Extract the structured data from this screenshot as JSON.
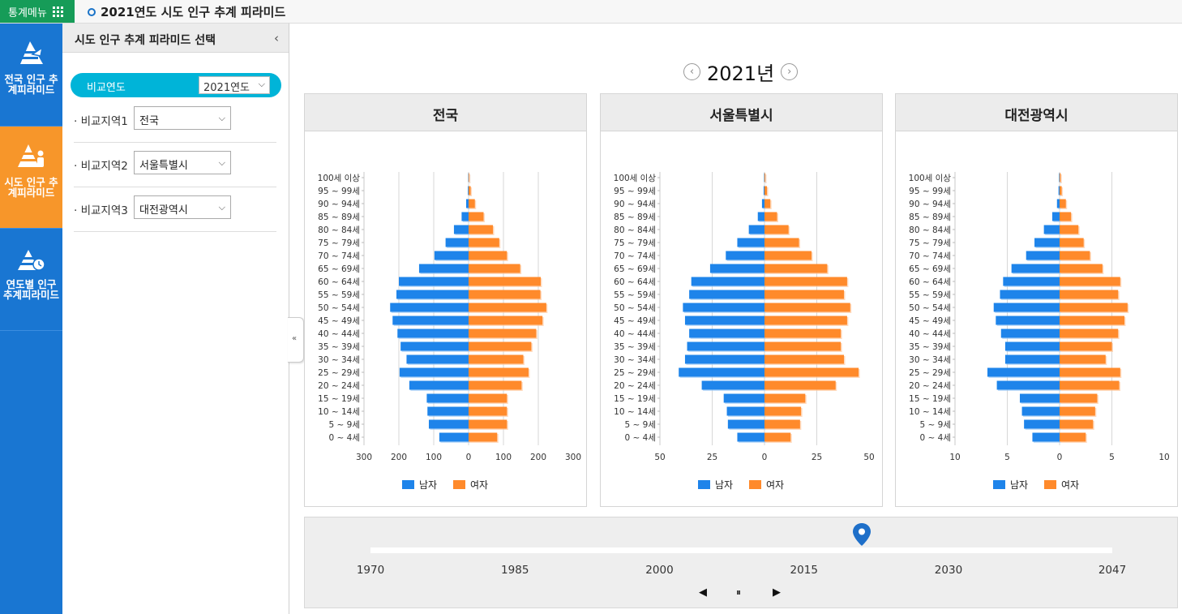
{
  "topbar": {
    "menu_label": "통계메뉴",
    "menu_icon": "grid-icon",
    "title": "2021연도 시도 인구 추계 피라미드"
  },
  "nav": [
    {
      "label": "전국 인구 추계피라미드",
      "icon": "pyramid-national-icon",
      "active": false
    },
    {
      "label": "시도 인구 추계피라미드",
      "icon": "pyramid-region-icon",
      "active": true
    },
    {
      "label": "연도별 인구 추계피라미드",
      "icon": "pyramid-clock-icon",
      "active": false
    }
  ],
  "panel": {
    "title": "시도 인구 추계 피라미드 선택",
    "compare_year_label": "비교연도",
    "compare_year_value": "2021연도",
    "regions": [
      {
        "label": "· 비교지역1",
        "value": "전국"
      },
      {
        "label": "· 비교지역2",
        "value": "서울특별시"
      },
      {
        "label": "· 비교지역3",
        "value": "대전광역시"
      }
    ]
  },
  "year_nav": {
    "year": "2021년",
    "prev_icon": "chevron-left-icon",
    "next_icon": "chevron-right-icon"
  },
  "legend": {
    "male": "남자",
    "female": "여자",
    "male_color": "#1e84ea",
    "female_color": "#ff8a2b"
  },
  "chart_data": [
    {
      "type": "bar",
      "title": "전국",
      "categories": [
        "100세 이상",
        "95 ~ 99세",
        "90 ~ 94세",
        "85 ~ 89세",
        "80 ~ 84세",
        "75 ~ 79세",
        "70 ~ 74세",
        "65 ~ 69세",
        "60 ~ 64세",
        "55 ~ 59세",
        "50 ~ 54세",
        "45 ~ 49세",
        "40 ~ 44세",
        "35 ~ 39세",
        "30 ~ 34세",
        "25 ~ 29세",
        "20 ~ 24세",
        "15 ~ 19세",
        "10 ~ 14세",
        "5 ~ 9세",
        "0 ~ 4세"
      ],
      "series": [
        {
          "name": "남자",
          "values": [
            1,
            2,
            7,
            20,
            42,
            66,
            98,
            142,
            200,
            207,
            225,
            218,
            204,
            195,
            178,
            198,
            170,
            120,
            118,
            114,
            84
          ]
        },
        {
          "name": "여자",
          "values": [
            2,
            6,
            18,
            43,
            70,
            88,
            110,
            148,
            207,
            206,
            223,
            212,
            194,
            180,
            157,
            172,
            152,
            110,
            110,
            110,
            82
          ]
        }
      ],
      "xlim": [
        -300,
        300
      ],
      "xticks": [
        "300",
        "200",
        "100",
        "0",
        "100",
        "200",
        "300"
      ]
    },
    {
      "type": "bar",
      "title": "서울특별시",
      "categories": [
        "100세 이상",
        "95 ~ 99세",
        "90 ~ 94세",
        "85 ~ 89세",
        "80 ~ 84세",
        "75 ~ 79세",
        "70 ~ 74세",
        "65 ~ 69세",
        "60 ~ 64세",
        "55 ~ 59세",
        "50 ~ 54세",
        "45 ~ 49세",
        "40 ~ 44세",
        "35 ~ 39세",
        "30 ~ 34세",
        "25 ~ 29세",
        "20 ~ 24세",
        "15 ~ 19세",
        "10 ~ 14세",
        "5 ~ 9세",
        "0 ~ 4세"
      ],
      "series": [
        {
          "name": "남자",
          "values": [
            0.2,
            0.4,
            1.2,
            3.2,
            7.5,
            13,
            18.5,
            26,
            35,
            36,
            39,
            38,
            36,
            37,
            38,
            41,
            30,
            19.5,
            18,
            17.5,
            13
          ]
        },
        {
          "name": "여자",
          "values": [
            0.4,
            1.2,
            2.8,
            6,
            11.5,
            16.5,
            22.5,
            30,
            39.5,
            38,
            41,
            39.5,
            36.5,
            36.5,
            38,
            45,
            34,
            19.5,
            17.5,
            17,
            12.5
          ]
        }
      ],
      "xlim": [
        -50,
        50
      ],
      "xticks": [
        "50",
        "25",
        "0",
        "25",
        "50"
      ]
    },
    {
      "type": "bar",
      "title": "대전광역시",
      "categories": [
        "100세 이상",
        "95 ~ 99세",
        "90 ~ 94세",
        "85 ~ 89세",
        "80 ~ 84세",
        "75 ~ 79세",
        "70 ~ 74세",
        "65 ~ 69세",
        "60 ~ 64세",
        "55 ~ 59세",
        "50 ~ 54세",
        "45 ~ 49세",
        "40 ~ 44세",
        "35 ~ 39세",
        "30 ~ 34세",
        "25 ~ 29세",
        "20 ~ 24세",
        "15 ~ 19세",
        "10 ~ 14세",
        "5 ~ 9세",
        "0 ~ 4세"
      ],
      "series": [
        {
          "name": "남자",
          "values": [
            0.05,
            0.1,
            0.25,
            0.7,
            1.5,
            2.4,
            3.2,
            4.6,
            5.4,
            5.7,
            6.3,
            6.1,
            5.6,
            5.2,
            5.2,
            6.9,
            6.0,
            3.8,
            3.6,
            3.4,
            2.6
          ]
        },
        {
          "name": "여자",
          "values": [
            0.1,
            0.2,
            0.6,
            1.1,
            1.8,
            2.3,
            2.9,
            4.1,
            5.8,
            5.6,
            6.5,
            6.2,
            5.6,
            5.0,
            4.4,
            5.8,
            5.7,
            3.6,
            3.4,
            3.2,
            2.5
          ]
        }
      ],
      "xlim": [
        -10,
        10
      ],
      "xticks": [
        "10",
        "5",
        "0",
        "5",
        "10"
      ]
    }
  ],
  "timeline": {
    "ticks": [
      "1970",
      "1985",
      "2000",
      "2015",
      "2030",
      "2047"
    ],
    "range": [
      1970,
      2047
    ],
    "current": 2021,
    "controls": {
      "prev": "◀",
      "pause": "⏸",
      "next": "▶"
    }
  }
}
